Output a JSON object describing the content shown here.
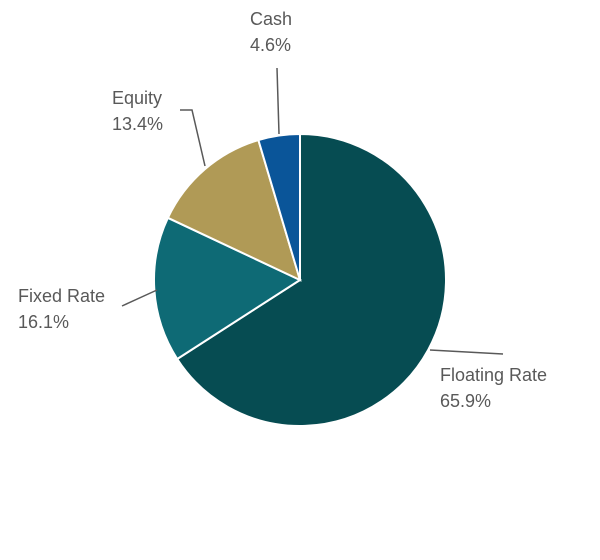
{
  "chart_data": {
    "type": "pie",
    "categories": [
      "Floating Rate",
      "Fixed Rate",
      "Equity",
      "Cash"
    ],
    "values": [
      65.9,
      16.1,
      13.4,
      4.6
    ],
    "value_labels": [
      "65.9%",
      "16.1%",
      "13.4%",
      "4.6%"
    ],
    "colors": [
      "#064c52",
      "#0e6a75",
      "#b09a56",
      "#0a5599"
    ]
  }
}
